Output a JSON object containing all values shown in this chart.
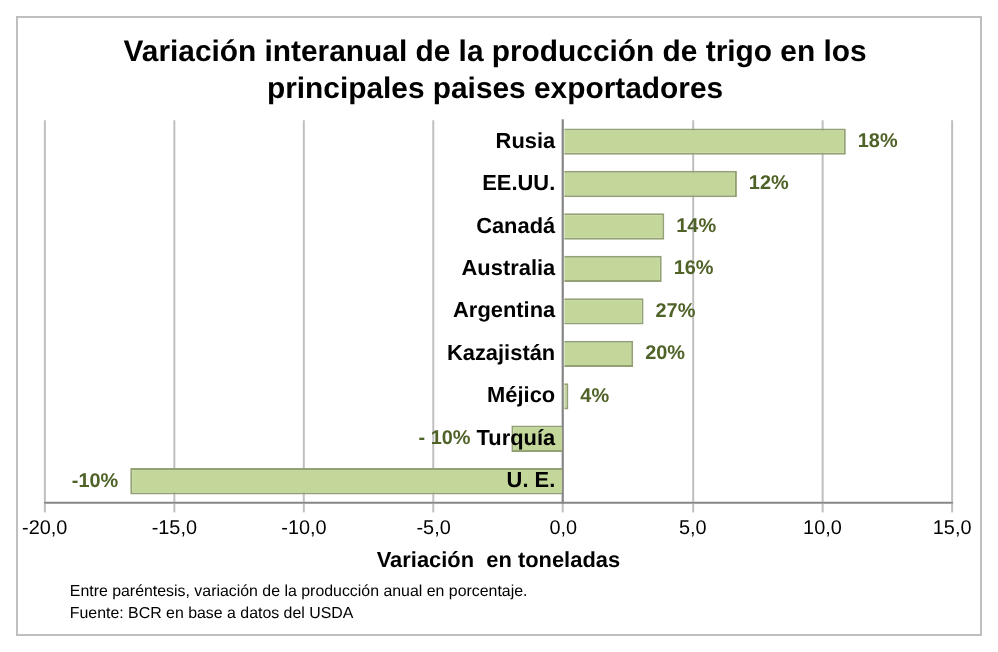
{
  "chart_data": {
    "type": "bar",
    "orientation": "horizontal",
    "title": "Variación interanual de la producción de trigo en los principales paises exportadores",
    "xlabel": "Variación  en toneladas",
    "categories": [
      "Rusia",
      "EE.UU.",
      "Canadá",
      "Australia",
      "Argentina",
      "Kazajistán",
      "Méjico",
      "Turquía",
      "U. E."
    ],
    "values": [
      10.9,
      6.7,
      3.9,
      3.8,
      3.1,
      2.7,
      0.2,
      -2.0,
      -16.7
    ],
    "color": "#c4d79b",
    "xlim": [
      -20,
      15
    ],
    "xticks": [
      {
        "value": -20,
        "label": "-20,0"
      },
      {
        "value": -15,
        "label": "-15,0"
      },
      {
        "value": -10,
        "label": "-10,0"
      },
      {
        "value": -5,
        "label": "-5,0"
      },
      {
        "value": 0,
        "label": "0,0"
      },
      {
        "value": 5,
        "label": "5,0"
      },
      {
        "value": 10,
        "label": "10,0"
      },
      {
        "value": 15,
        "label": "15,0"
      }
    ],
    "grid": "x",
    "legend": false,
    "annotations": [
      {
        "text": "18%",
        "x": 10.9,
        "y": "Rusia"
      },
      {
        "text": "12%",
        "x": 6.7,
        "y": "EE.UU."
      },
      {
        "text": "14%",
        "x": 3.9,
        "y": "Canadá"
      },
      {
        "text": "16%",
        "x": 3.8,
        "y": "Australia"
      },
      {
        "text": "27%",
        "x": 3.1,
        "y": "Argentina"
      },
      {
        "text": "20%",
        "x": 2.7,
        "y": "Kazajistán"
      },
      {
        "text": "4%",
        "x": 0.2,
        "y": "Méjico"
      },
      {
        "text": "- 10%",
        "x": -2.0,
        "y": "Turquía"
      },
      {
        "text": "-10%",
        "x": -16.7,
        "y": "U. E."
      },
      "Entre paréntesis, variación de la producción anual en porcentaje.",
      "Fuente: BCR en base a datos del USDA"
    ]
  }
}
